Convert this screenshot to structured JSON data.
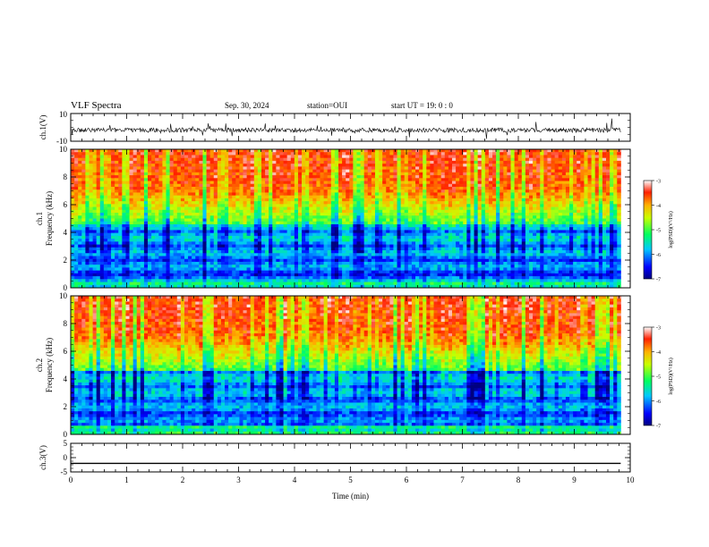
{
  "header": {
    "title": "VLF Spectra",
    "date": "Sep. 30, 2024",
    "station": "station=OUI",
    "start": "start UT =  19: 0 : 0"
  },
  "chart_data": [
    {
      "type": "line",
      "panel": "ch1-waveform",
      "ylabel": "ch.1(V)",
      "ylim": [
        -10,
        10
      ],
      "xlim": [
        0,
        10
      ],
      "yticklabels": [
        "10",
        "-10"
      ],
      "baseline": -2,
      "color": "#000000"
    },
    {
      "type": "heatmap",
      "panel": "ch1-spectrogram",
      "ylabel_channel": "ch.1",
      "ylabel": "Frequency (kHz)",
      "ylim": [
        0,
        10
      ],
      "xlim": [
        0,
        9.83
      ],
      "yticklabels": [
        "0",
        "2",
        "4",
        "6",
        "8",
        "10"
      ],
      "colorbar": {
        "label": "log(PSD)(V²/Hz)",
        "range": [
          -7,
          -3
        ],
        "ticklabels": [
          "-3",
          "-4",
          "-5",
          "-6",
          "-7"
        ]
      }
    },
    {
      "type": "heatmap",
      "panel": "ch2-spectrogram",
      "ylabel_channel": "ch.2",
      "ylabel": "Frequency (kHz)",
      "ylim": [
        0,
        10
      ],
      "xlim": [
        0,
        9.83
      ],
      "yticklabels": [
        "0",
        "2",
        "4",
        "6",
        "8",
        "10"
      ],
      "colorbar": {
        "label": "log(PSD)(V²/Hz)",
        "range": [
          -7,
          -3
        ],
        "ticklabels": [
          "-3",
          "-4",
          "-5",
          "-6",
          "-7"
        ]
      }
    },
    {
      "type": "line",
      "panel": "ch3-waveform",
      "ylabel": "ch.3(V)",
      "ylim": [
        -5,
        5
      ],
      "xlim": [
        0,
        10
      ],
      "yticklabels": [
        "5",
        "0",
        "-5"
      ],
      "x": [
        0,
        9.83
      ],
      "y": [
        -2,
        -2
      ],
      "color": "#000000"
    }
  ],
  "xaxis": {
    "label": "Time (min)",
    "range": [
      0,
      10
    ],
    "ticklabels": [
      "0",
      "1",
      "2",
      "3",
      "4",
      "5",
      "6",
      "7",
      "8",
      "9",
      "10"
    ]
  }
}
